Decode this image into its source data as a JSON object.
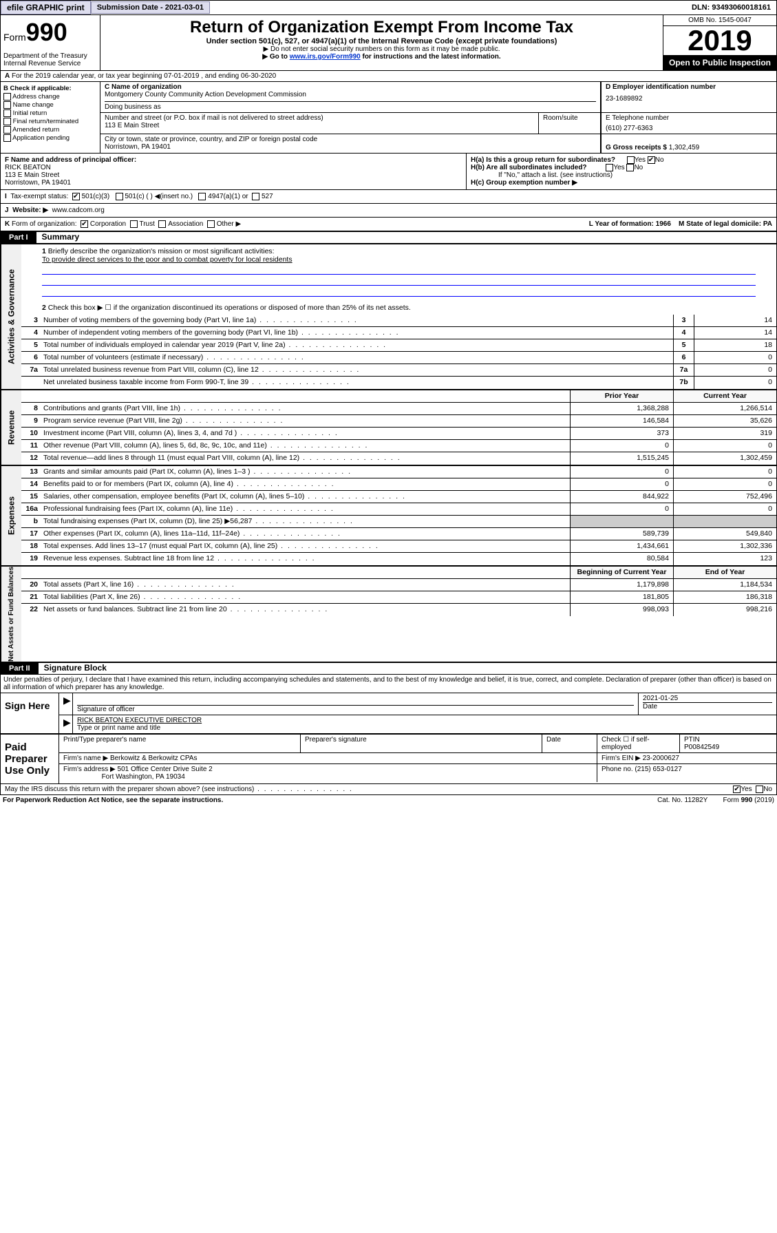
{
  "topbar": {
    "efile": "efile GRAPHIC print",
    "submission": "Submission Date - 2021-03-01",
    "dln": "DLN: 93493060018161"
  },
  "header": {
    "form": "Form",
    "form_num": "990",
    "dept": "Department of the Treasury\nInternal Revenue Service",
    "title": "Return of Organization Exempt From Income Tax",
    "sub": "Under section 501(c), 527, or 4947(a)(1) of the Internal Revenue Code (except private foundations)",
    "note1": "▶ Do not enter social security numbers on this form as it may be made public.",
    "note2_pre": "▶ Go to ",
    "note2_link": "www.irs.gov/Form990",
    "note2_post": " for instructions and the latest information.",
    "omb": "OMB No. 1545-0047",
    "year": "2019",
    "open": "Open to Public Inspection"
  },
  "rowA": {
    "prefix": "A",
    "text": "For the 2019 calendar year, or tax year beginning 07-01-2019    , and ending 06-30-2020"
  },
  "boxB": {
    "title": "B Check if applicable:",
    "items": [
      "Address change",
      "Name change",
      "Initial return",
      "Final return/terminated",
      "Amended return",
      "Application pending"
    ]
  },
  "boxC": {
    "name_label": "C Name of organization",
    "name": "Montgomery County Community Action Development Commission",
    "dba": "Doing business as",
    "addr_label": "Number and street (or P.O. box if mail is not delivered to street address)",
    "addr": "113 E Main Street",
    "room": "Room/suite",
    "city_label": "City or town, state or province, country, and ZIP or foreign postal code",
    "city": "Norristown, PA  19401"
  },
  "boxD": {
    "label": "D Employer identification number",
    "val": "23-1689892"
  },
  "boxE": {
    "label": "E Telephone number",
    "val": "(610) 277-6363"
  },
  "boxG": {
    "label": "G Gross receipts $",
    "val": "1,302,459"
  },
  "boxF": {
    "label": "F  Name and address of principal officer:",
    "name": "RICK BEATON",
    "addr": "113 E Main Street\nNorristown, PA  19401"
  },
  "boxH": {
    "a": "H(a)  Is this a group return for subordinates?",
    "b": "H(b)  Are all subordinates included?",
    "b_note": "If \"No,\" attach a list. (see instructions)",
    "c": "H(c)  Group exemption number ▶"
  },
  "taxStatus": {
    "i": "I",
    "label": "Tax-exempt status:",
    "opts": [
      "501(c)(3)",
      "501(c) (  ) ◀(insert no.)",
      "4947(a)(1) or",
      "527"
    ]
  },
  "website": {
    "j": "J",
    "label": "Website: ▶",
    "val": "www.cadcom.org"
  },
  "rowK": {
    "k": "K",
    "label": "Form of organization:",
    "opts": [
      "Corporation",
      "Trust",
      "Association",
      "Other ▶"
    ],
    "l": "L Year of formation: 1966",
    "m": "M State of legal domicile: PA"
  },
  "part1": {
    "num": "Part I",
    "title": "Summary"
  },
  "summary": {
    "q1": "Briefly describe the organization's mission or most significant activities:",
    "mission": "To provide direct services to the poor and to combat poverty for local residents",
    "q2": "Check this box ▶ ☐  if the organization discontinued its operations or disposed of more than 25% of its net assets.",
    "lines": [
      {
        "n": "3",
        "d": "Number of voting members of the governing body (Part VI, line 1a)",
        "b": "3",
        "v": "14"
      },
      {
        "n": "4",
        "d": "Number of independent voting members of the governing body (Part VI, line 1b)",
        "b": "4",
        "v": "14"
      },
      {
        "n": "5",
        "d": "Total number of individuals employed in calendar year 2019 (Part V, line 2a)",
        "b": "5",
        "v": "18"
      },
      {
        "n": "6",
        "d": "Total number of volunteers (estimate if necessary)",
        "b": "6",
        "v": "0"
      },
      {
        "n": "7a",
        "d": "Total unrelated business revenue from Part VIII, column (C), line 12",
        "b": "7a",
        "v": "0"
      },
      {
        "n": "",
        "d": "Net unrelated business taxable income from Form 990-T, line 39",
        "b": "7b",
        "v": "0"
      }
    ],
    "revHdr": {
      "prior": "Prior Year",
      "curr": "Current Year"
    },
    "revenue": [
      {
        "n": "8",
        "d": "Contributions and grants (Part VIII, line 1h)",
        "p": "1,368,288",
        "c": "1,266,514"
      },
      {
        "n": "9",
        "d": "Program service revenue (Part VIII, line 2g)",
        "p": "146,584",
        "c": "35,626"
      },
      {
        "n": "10",
        "d": "Investment income (Part VIII, column (A), lines 3, 4, and 7d )",
        "p": "373",
        "c": "319"
      },
      {
        "n": "11",
        "d": "Other revenue (Part VIII, column (A), lines 5, 6d, 8c, 9c, 10c, and 11e)",
        "p": "0",
        "c": "0"
      },
      {
        "n": "12",
        "d": "Total revenue—add lines 8 through 11 (must equal Part VIII, column (A), line 12)",
        "p": "1,515,245",
        "c": "1,302,459"
      }
    ],
    "expenses": [
      {
        "n": "13",
        "d": "Grants and similar amounts paid (Part IX, column (A), lines 1–3 )",
        "p": "0",
        "c": "0"
      },
      {
        "n": "14",
        "d": "Benefits paid to or for members (Part IX, column (A), line 4)",
        "p": "0",
        "c": "0"
      },
      {
        "n": "15",
        "d": "Salaries, other compensation, employee benefits (Part IX, column (A), lines 5–10)",
        "p": "844,922",
        "c": "752,496"
      },
      {
        "n": "16a",
        "d": "Professional fundraising fees (Part IX, column (A), line 11e)",
        "p": "0",
        "c": "0"
      },
      {
        "n": "b",
        "d": "Total fundraising expenses (Part IX, column (D), line 25) ▶56,287",
        "p": "",
        "c": "",
        "shade": true
      },
      {
        "n": "17",
        "d": "Other expenses (Part IX, column (A), lines 11a–11d, 11f–24e)",
        "p": "589,739",
        "c": "549,840"
      },
      {
        "n": "18",
        "d": "Total expenses. Add lines 13–17 (must equal Part IX, column (A), line 25)",
        "p": "1,434,661",
        "c": "1,302,336"
      },
      {
        "n": "19",
        "d": "Revenue less expenses. Subtract line 18 from line 12",
        "p": "80,584",
        "c": "123"
      }
    ],
    "netHdr": {
      "prior": "Beginning of Current Year",
      "curr": "End of Year"
    },
    "net": [
      {
        "n": "20",
        "d": "Total assets (Part X, line 16)",
        "p": "1,179,898",
        "c": "1,184,534"
      },
      {
        "n": "21",
        "d": "Total liabilities (Part X, line 26)",
        "p": "181,805",
        "c": "186,318"
      },
      {
        "n": "22",
        "d": "Net assets or fund balances. Subtract line 21 from line 20",
        "p": "998,093",
        "c": "998,216"
      }
    ]
  },
  "part2": {
    "num": "Part II",
    "title": "Signature Block"
  },
  "perjury": "Under penalties of perjury, I declare that I have examined this return, including accompanying schedules and statements, and to the best of my knowledge and belief, it is true, correct, and complete. Declaration of preparer (other than officer) is based on all information of which preparer has any knowledge.",
  "sign": {
    "label": "Sign Here",
    "date": "2021-01-25",
    "sig_label": "Signature of officer",
    "date_label": "Date",
    "name": "RICK BEATON  EXECUTIVE DIRECTOR",
    "name_label": "Type or print name and title"
  },
  "paid": {
    "label": "Paid Preparer Use Only",
    "h1": "Print/Type preparer's name",
    "h2": "Preparer's signature",
    "h3": "Date",
    "h4": "Check ☐ if self-employed",
    "ptin_label": "PTIN",
    "ptin": "P00842549",
    "firm_label": "Firm's name   ▶",
    "firm": "Berkowitz & Berkowitz CPAs",
    "ein_label": "Firm's EIN ▶",
    "ein": "23-2000627",
    "addr_label": "Firm's address ▶",
    "addr": "501 Office Center Drive Suite 2",
    "addr2": "Fort Washington, PA  19034",
    "phone_label": "Phone no.",
    "phone": "(215) 653-0127"
  },
  "discuss": "May the IRS discuss this return with the preparer shown above? (see instructions)",
  "footer": {
    "left": "For Paperwork Reduction Act Notice, see the separate instructions.",
    "mid": "Cat. No. 11282Y",
    "right": "Form 990 (2019)"
  }
}
